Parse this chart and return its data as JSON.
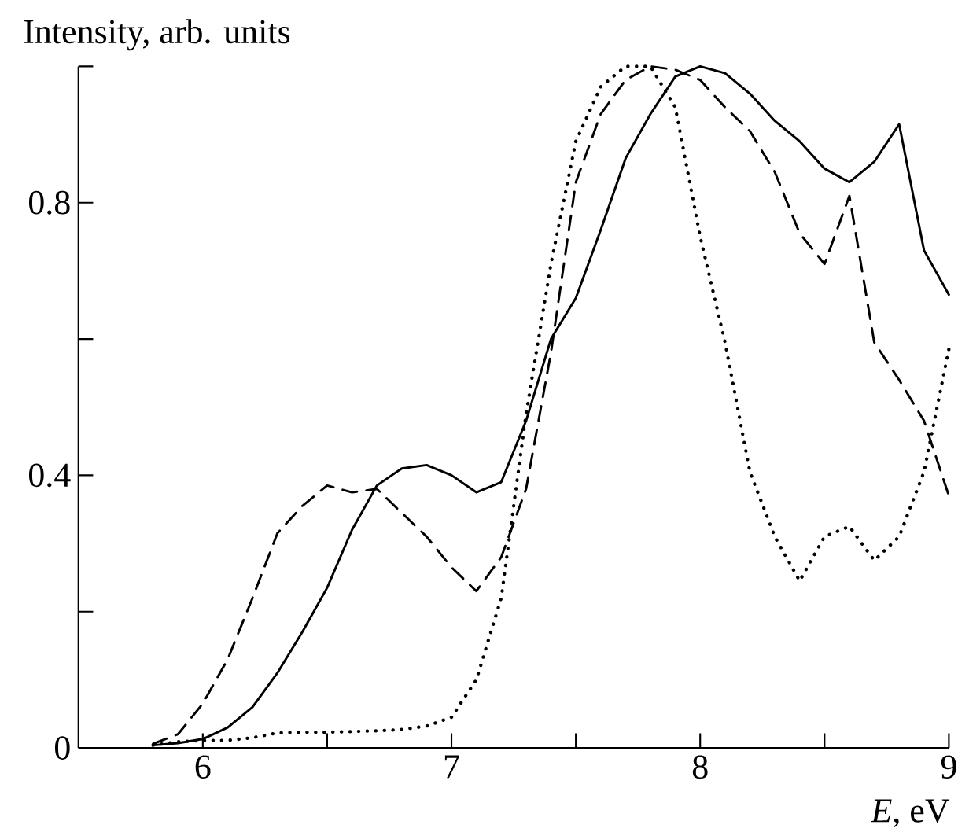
{
  "chart_data": {
    "type": "line",
    "ylabel": "Intensity, arb. units",
    "xlabel": "*E*, eV",
    "xlim": [
      5.5,
      9
    ],
    "ylim": [
      0,
      1
    ],
    "xticks": [
      6,
      {
        "value": 6.5,
        "label": null
      },
      7,
      {
        "value": 7.5,
        "label": null
      },
      8,
      {
        "value": 8.5,
        "label": null
      },
      9
    ],
    "yticks": [
      0,
      {
        "value": 0.2,
        "label": null
      },
      0.4,
      {
        "value": 0.6,
        "label": null
      },
      0.8,
      {
        "value": 1.0,
        "label": null
      }
    ],
    "grid": false,
    "marker": "none",
    "x": [
      5.8,
      5.9,
      6.0,
      6.1,
      6.2,
      6.3,
      6.4,
      6.5,
      6.6,
      6.7,
      6.8,
      6.9,
      7.0,
      7.1,
      7.2,
      7.3,
      7.4,
      7.5,
      7.6,
      7.7,
      7.8,
      7.9,
      8.0,
      8.1,
      8.2,
      8.3,
      8.4,
      8.5,
      8.6,
      8.7,
      8.8,
      8.9,
      9.0
    ],
    "series": [
      {
        "color": "#000000",
        "line_style": "solid",
        "values": [
          0.004,
          0.007,
          0.013,
          0.03,
          0.06,
          0.11,
          0.17,
          0.235,
          0.32,
          0.385,
          0.41,
          0.415,
          0.4,
          0.375,
          0.39,
          0.48,
          0.6,
          0.66,
          0.76,
          0.865,
          0.93,
          0.985,
          1.0,
          0.99,
          0.96,
          0.92,
          0.89,
          0.85,
          0.83,
          0.86,
          0.915,
          0.73,
          0.665
        ]
      },
      {
        "color": "#000000",
        "line_style": "dashed",
        "values": [
          0.006,
          0.02,
          0.065,
          0.13,
          0.22,
          0.315,
          0.355,
          0.385,
          0.375,
          0.38,
          0.345,
          0.31,
          0.265,
          0.23,
          0.28,
          0.38,
          0.58,
          0.83,
          0.93,
          0.98,
          1.0,
          0.995,
          0.98,
          0.94,
          0.905,
          0.845,
          0.755,
          0.71,
          0.81,
          0.595,
          0.54,
          0.48,
          0.37
        ]
      },
      {
        "color": "#000000",
        "line_style": "dotted",
        "values": [
          0.004,
          0.009,
          0.011,
          0.011,
          0.015,
          0.022,
          0.023,
          0.023,
          0.024,
          0.025,
          0.027,
          0.032,
          0.045,
          0.1,
          0.22,
          0.49,
          0.71,
          0.89,
          0.97,
          1.0,
          1.0,
          0.94,
          0.75,
          0.595,
          0.405,
          0.31,
          0.245,
          0.31,
          0.325,
          0.275,
          0.31,
          0.405,
          0.585
        ]
      }
    ]
  }
}
